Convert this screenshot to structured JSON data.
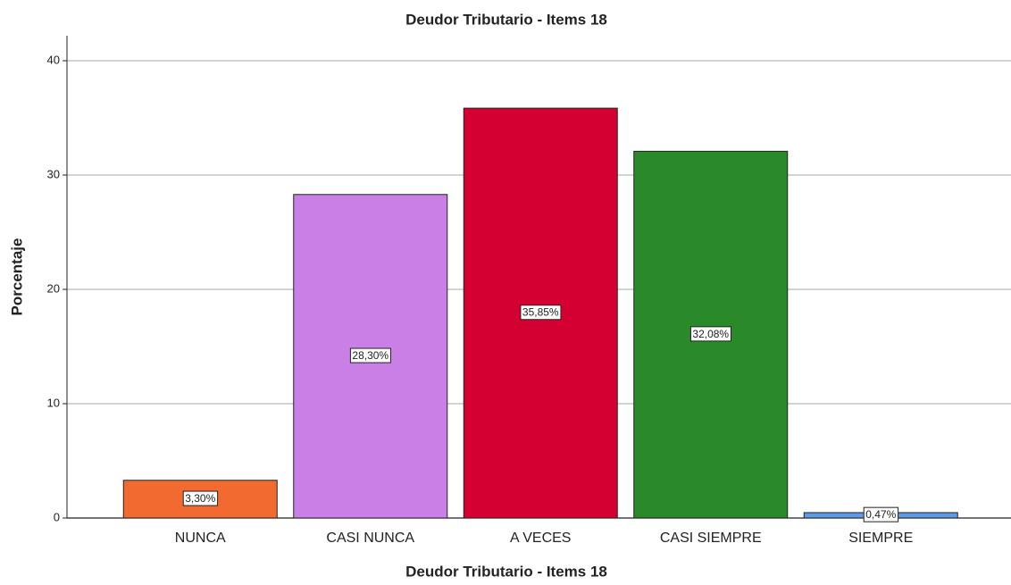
{
  "chart_data": {
    "type": "bar",
    "title": "Deudor Tributario - Items 18",
    "x_label": "Deudor Tributario - Items 18",
    "y_label": "Porcentaje",
    "categories": [
      "NUNCA",
      "CASI NUNCA",
      "A VECES",
      "CASI SIEMPRE",
      "SIEMPRE"
    ],
    "values": [
      3.3,
      28.3,
      35.85,
      32.08,
      0.47
    ],
    "value_labels": [
      "3,30%",
      "28,30%",
      "35,85%",
      "32,08%",
      "0,47%"
    ],
    "colors": [
      "#f26a2f",
      "#c97fe5",
      "#d50032",
      "#2a8a2a",
      "#5a9be4"
    ],
    "ylim": [
      0,
      42
    ],
    "yticks": [
      0,
      10,
      20,
      30,
      40
    ],
    "grid": true
  }
}
